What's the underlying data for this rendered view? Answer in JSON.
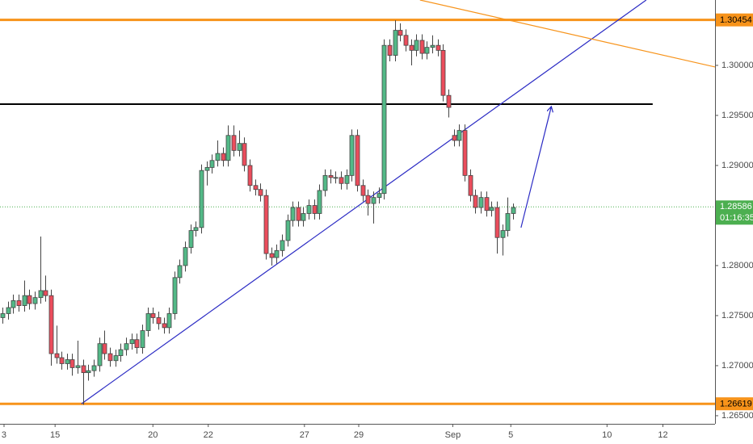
{
  "chart_data": {
    "type": "candlestick",
    "x": [
      0,
      1,
      2,
      3,
      4,
      5,
      6,
      7,
      8,
      9,
      10,
      11,
      12,
      13,
      14,
      15,
      16,
      17,
      18,
      19,
      20,
      21,
      22,
      23,
      24,
      25,
      26,
      27,
      28,
      29,
      30,
      31,
      32,
      33,
      34,
      35,
      36,
      37,
      38,
      39,
      40,
      41,
      42,
      43,
      44,
      45,
      46,
      47,
      48,
      49,
      50,
      51,
      52,
      53,
      54,
      55,
      56,
      57,
      58,
      59,
      60,
      61,
      62,
      63,
      64,
      65,
      66,
      67,
      68,
      69,
      70,
      71,
      72,
      73,
      74,
      75,
      76,
      77,
      78,
      79,
      80,
      81,
      82,
      83,
      84,
      85,
      86,
      87,
      88,
      89,
      90,
      91,
      92,
      93,
      94,
      95
    ],
    "open": [
      1.2748,
      1.2752,
      1.2758,
      1.2765,
      1.276,
      1.277,
      1.2762,
      1.2768,
      1.2775,
      1.277,
      1.2712,
      1.2708,
      1.2702,
      1.2706,
      1.2698,
      1.27,
      1.2693,
      1.2695,
      1.27,
      1.2722,
      1.2712,
      1.2705,
      1.271,
      1.2716,
      1.2722,
      1.2726,
      1.2718,
      1.2735,
      1.2752,
      1.2748,
      1.2742,
      1.2738,
      1.2752,
      1.2788,
      1.28,
      1.2818,
      1.2835,
      1.2838,
      1.2895,
      1.2898,
      1.2905,
      1.2912,
      1.2905,
      1.293,
      1.2915,
      1.2922,
      1.29,
      1.288,
      1.2876,
      1.287,
      1.2812,
      1.2808,
      1.2815,
      1.2825,
      1.2845,
      1.2858,
      1.2845,
      1.2852,
      1.286,
      1.2852,
      1.2875,
      1.289,
      1.2888,
      1.2888,
      1.2882,
      1.289,
      1.293,
      1.288,
      1.287,
      1.2862,
      1.2868,
      1.2872,
      1.302,
      1.301,
      1.3035,
      1.303,
      1.302,
      1.3015,
      1.3025,
      1.3012,
      1.3018,
      1.302,
      1.3015,
      1.297,
      1.293,
      1.2925,
      1.2935,
      1.289,
      1.287,
      1.2858,
      1.2868,
      1.2855,
      1.2858,
      1.2828,
      1.2835,
      1.2852
    ],
    "high": [
      1.2758,
      1.2764,
      1.2771,
      1.2771,
      1.2785,
      1.2776,
      1.2774,
      1.2829,
      1.279,
      1.2776,
      1.274,
      1.2714,
      1.2712,
      1.2712,
      1.2725,
      1.2706,
      1.2701,
      1.2706,
      1.2728,
      1.2735,
      1.2718,
      1.2716,
      1.2722,
      1.2728,
      1.2732,
      1.2732,
      1.2741,
      1.2758,
      1.2758,
      1.2754,
      1.2748,
      1.2758,
      1.2794,
      1.2806,
      1.2824,
      1.2841,
      1.2844,
      1.2901,
      1.2904,
      1.2911,
      1.2925,
      1.2918,
      1.294,
      1.294,
      1.2935,
      1.2928,
      1.2906,
      1.2886,
      1.2882,
      1.2876,
      1.2818,
      1.2821,
      1.2831,
      1.2851,
      1.2864,
      1.2864,
      1.2858,
      1.2866,
      1.2866,
      1.2881,
      1.2896,
      1.2896,
      1.2894,
      1.2894,
      1.2896,
      1.2936,
      1.2936,
      1.2886,
      1.2876,
      1.2874,
      1.2878,
      1.3026,
      1.3026,
      1.3045,
      1.3042,
      1.3036,
      1.3026,
      1.3031,
      1.3031,
      1.3024,
      1.303,
      1.3026,
      1.3021,
      1.2976,
      1.2936,
      1.2941,
      1.2941,
      1.2896,
      1.2876,
      1.2874,
      1.2874,
      1.2864,
      1.2864,
      1.2841,
      1.2868,
      1.2862
    ],
    "low": [
      1.2742,
      1.2746,
      1.2752,
      1.2754,
      1.2754,
      1.2756,
      1.2756,
      1.2762,
      1.2764,
      1.27,
      1.2702,
      1.2696,
      1.2696,
      1.269,
      1.2692,
      1.2661,
      1.2685,
      1.2689,
      1.2694,
      1.2706,
      1.2699,
      1.2699,
      1.2704,
      1.271,
      1.2716,
      1.2712,
      1.2712,
      1.2729,
      1.2742,
      1.2736,
      1.2732,
      1.2732,
      1.2746,
      1.2782,
      1.2794,
      1.2812,
      1.2829,
      1.2832,
      1.288,
      1.2892,
      1.2899,
      1.2899,
      1.2899,
      1.2909,
      1.2909,
      1.2894,
      1.2874,
      1.287,
      1.2864,
      1.2806,
      1.28,
      1.2802,
      1.2809,
      1.2819,
      1.2839,
      1.2839,
      1.2839,
      1.2846,
      1.2846,
      1.2846,
      1.2869,
      1.2882,
      1.2882,
      1.2876,
      1.2876,
      1.2884,
      1.2874,
      1.2864,
      1.285,
      1.2842,
      1.2862,
      1.2866,
      1.3004,
      1.3004,
      1.3024,
      1.3014,
      1.3,
      1.3009,
      1.3006,
      1.3006,
      1.3012,
      1.3009,
      1.2964,
      1.2948,
      1.2919,
      1.2919,
      1.2884,
      1.2864,
      1.2852,
      1.2852,
      1.2849,
      1.2849,
      1.2812,
      1.281,
      1.2829,
      1.2846
    ],
    "close": [
      1.2752,
      1.2758,
      1.2765,
      1.276,
      1.277,
      1.2762,
      1.2768,
      1.2775,
      1.277,
      1.2712,
      1.2708,
      1.2702,
      1.2706,
      1.2698,
      1.27,
      1.2693,
      1.2695,
      1.27,
      1.2722,
      1.2712,
      1.2705,
      1.271,
      1.2716,
      1.2722,
      1.2726,
      1.2718,
      1.2735,
      1.2752,
      1.2748,
      1.2742,
      1.2738,
      1.2752,
      1.2788,
      1.28,
      1.2818,
      1.2835,
      1.2838,
      1.2895,
      1.2898,
      1.2905,
      1.2912,
      1.2905,
      1.293,
      1.2915,
      1.2922,
      1.29,
      1.288,
      1.2876,
      1.287,
      1.2812,
      1.2808,
      1.2815,
      1.2825,
      1.2845,
      1.2858,
      1.2845,
      1.2852,
      1.286,
      1.2852,
      1.2875,
      1.289,
      1.2888,
      1.2888,
      1.2882,
      1.289,
      1.293,
      1.288,
      1.287,
      1.2862,
      1.2868,
      1.2872,
      1.302,
      1.301,
      1.3035,
      1.303,
      1.302,
      1.3015,
      1.3025,
      1.3012,
      1.3018,
      1.302,
      1.3015,
      1.297,
      1.2958,
      1.2925,
      1.2935,
      1.289,
      1.287,
      1.2858,
      1.2868,
      1.2855,
      1.2858,
      1.2828,
      1.2835,
      1.2852,
      1.2858
    ],
    "up_color": "#53b987",
    "down_color": "#eb4d5c",
    "xlim": [
      -0.45,
      132.6
    ],
    "xticks": [
      {
        "value": 0.3,
        "label": "3"
      },
      {
        "value": 9.8,
        "label": "15"
      },
      {
        "value": 28,
        "label": "20"
      },
      {
        "value": 38.3,
        "label": "22"
      },
      {
        "value": 56.2,
        "label": "27"
      },
      {
        "value": 66.3,
        "label": "29"
      },
      {
        "value": 83.8,
        "label": "Sep"
      },
      {
        "value": 94.6,
        "label": "5"
      },
      {
        "value": 112.5,
        "label": "10"
      },
      {
        "value": 122.9,
        "label": "12"
      }
    ],
    "ylim": [
      1.26419,
      1.30653
    ],
    "yticks": [
      {
        "value": 1.265,
        "label": "1.26500"
      },
      {
        "value": 1.27,
        "label": "1.27000"
      },
      {
        "value": 1.275,
        "label": "1.27500"
      },
      {
        "value": 1.28,
        "label": "1.28000"
      },
      {
        "value": 1.29,
        "label": "1.29000"
      },
      {
        "value": 1.295,
        "label": "1.29500"
      },
      {
        "value": 1.3,
        "label": "1.30000"
      }
    ],
    "grid": false,
    "levels": [
      {
        "value": 1.30454,
        "color": "#f7931a"
      },
      {
        "value": 1.26619,
        "color": "#f7931a"
      }
    ],
    "hline": {
      "value": 1.29613,
      "x_end": 121,
      "color": "#000000"
    },
    "current": {
      "value": 1.28586,
      "countdown": "01:16:35",
      "color": "#4caf50"
    },
    "trendlines": [
      {
        "points": [
          [
            14.7,
            1.26619
          ],
          [
            119.8,
            1.30653
          ]
        ],
        "color": "#2b2bc4"
      },
      {
        "points": [
          [
            77.7,
            1.30653
          ],
          [
            132.6,
            1.29984
          ]
        ],
        "color": "#f7931a"
      }
    ],
    "arrow": {
      "points": [
        [
          96.5,
          1.28379
        ],
        [
          102.1,
          1.29581
        ]
      ],
      "color": "#2b2bc4"
    }
  }
}
